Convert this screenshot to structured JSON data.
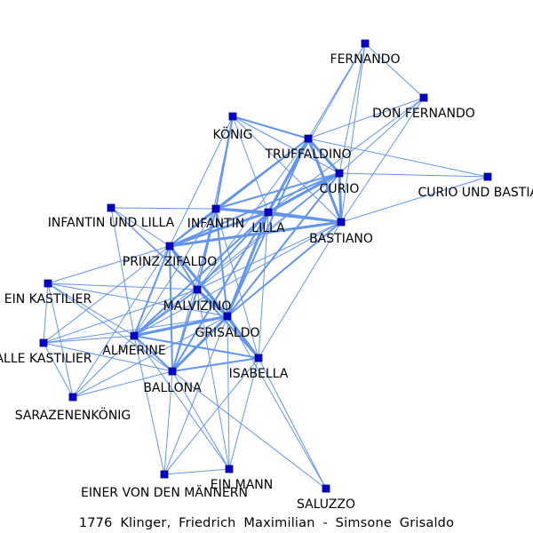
{
  "caption": "1776 Klinger, Friedrich Maximilian - Simsone Grisaldo",
  "colors": {
    "node_fill": "#0000cc",
    "node_stroke": "#000080",
    "edge": "#6495ed",
    "label": "#000000"
  },
  "nodes": [
    {
      "id": "FERNANDO",
      "label": "FERNANDO"
    },
    {
      "id": "DON_FERNANDO",
      "label": "DON FERNANDO"
    },
    {
      "id": "KOENIG",
      "label": "KÖNIG"
    },
    {
      "id": "TRUFFALDINO",
      "label": "TRUFFALDINO"
    },
    {
      "id": "CURIO",
      "label": "CURIO"
    },
    {
      "id": "CURIO_BASTIANO",
      "label": "CURIO UND BASTIANO"
    },
    {
      "id": "INFANTIN_LILLA",
      "label": "INFANTIN UND LILLA"
    },
    {
      "id": "INFANTIN",
      "label": "INFANTIN"
    },
    {
      "id": "LILLA",
      "label": "LILLA"
    },
    {
      "id": "BASTIANO",
      "label": "BASTIANO"
    },
    {
      "id": "PRINZ_ZIFALDO",
      "label": "PRINZ ZIFALDO"
    },
    {
      "id": "EIN_KASTILIER",
      "label": "EIN KASTILIER"
    },
    {
      "id": "MALVIZINO",
      "label": "MALVIZINO"
    },
    {
      "id": "GRISALDO",
      "label": "GRISALDO"
    },
    {
      "id": "ALLE_KASTILIER",
      "label": "ALLE KASTILIER"
    },
    {
      "id": "ALMERINE",
      "label": "ALMERINE"
    },
    {
      "id": "ISABELLA",
      "label": "ISABELLA"
    },
    {
      "id": "BALLONA",
      "label": "BALLONA"
    },
    {
      "id": "SARAZENENKOENIG",
      "label": "SARAZENENKÖNIG"
    },
    {
      "id": "EIN_MANN",
      "label": "EIN MANN"
    },
    {
      "id": "EINER_VON_DEN_MAENNERN",
      "label": "EINER VON DEN MÄNNERN"
    },
    {
      "id": "SALUZZO",
      "label": "SALUZZO"
    }
  ],
  "edges": [
    [
      "FERNANDO",
      "DON_FERNANDO",
      1
    ],
    [
      "FERNANDO",
      "TRUFFALDINO",
      1
    ],
    [
      "FERNANDO",
      "CURIO",
      1
    ],
    [
      "FERNANDO",
      "BASTIANO",
      1
    ],
    [
      "FERNANDO",
      "LILLA",
      1
    ],
    [
      "DON_FERNANDO",
      "TRUFFALDINO",
      1
    ],
    [
      "DON_FERNANDO",
      "CURIO",
      1
    ],
    [
      "DON_FERNANDO",
      "BASTIANO",
      1
    ],
    [
      "DON_FERNANDO",
      "LILLA",
      1
    ],
    [
      "KOENIG",
      "TRUFFALDINO",
      2
    ],
    [
      "KOENIG",
      "CURIO",
      1
    ],
    [
      "KOENIG",
      "INFANTIN",
      2
    ],
    [
      "KOENIG",
      "LILLA",
      1
    ],
    [
      "KOENIG",
      "BASTIANO",
      1
    ],
    [
      "KOENIG",
      "PRINZ_ZIFALDO",
      1
    ],
    [
      "KOENIG",
      "MALVIZINO",
      1
    ],
    [
      "TRUFFALDINO",
      "CURIO",
      3
    ],
    [
      "TRUFFALDINO",
      "BASTIANO",
      3
    ],
    [
      "TRUFFALDINO",
      "LILLA",
      3
    ],
    [
      "TRUFFALDINO",
      "INFANTIN",
      2
    ],
    [
      "TRUFFALDINO",
      "PRINZ_ZIFALDO",
      2
    ],
    [
      "TRUFFALDINO",
      "MALVIZINO",
      1
    ],
    [
      "TRUFFALDINO",
      "GRISALDO",
      2
    ],
    [
      "TRUFFALDINO",
      "CURIO_BASTIANO",
      1
    ],
    [
      "CURIO",
      "BASTIANO",
      3
    ],
    [
      "CURIO",
      "LILLA",
      3
    ],
    [
      "CURIO",
      "INFANTIN",
      2
    ],
    [
      "CURIO",
      "PRINZ_ZIFALDO",
      2
    ],
    [
      "CURIO",
      "GRISALDO",
      2
    ],
    [
      "CURIO",
      "MALVIZINO",
      1
    ],
    [
      "CURIO",
      "CURIO_BASTIANO",
      1
    ],
    [
      "CURIO",
      "ALMERINE",
      1
    ],
    [
      "BASTIANO",
      "LILLA",
      3
    ],
    [
      "BASTIANO",
      "INFANTIN",
      2
    ],
    [
      "BASTIANO",
      "PRINZ_ZIFALDO",
      3
    ],
    [
      "BASTIANO",
      "GRISALDO",
      2
    ],
    [
      "BASTIANO",
      "MALVIZINO",
      1
    ],
    [
      "BASTIANO",
      "CURIO_BASTIANO",
      1
    ],
    [
      "BASTIANO",
      "ISABELLA",
      1
    ],
    [
      "BASTIANO",
      "ALMERINE",
      1
    ],
    [
      "INFANTIN_LILLA",
      "INFANTIN",
      1
    ],
    [
      "INFANTIN_LILLA",
      "PRINZ_ZIFALDO",
      1
    ],
    [
      "INFANTIN_LILLA",
      "MALVIZINO",
      1
    ],
    [
      "INFANTIN_LILLA",
      "GRISALDO",
      1
    ],
    [
      "INFANTIN_LILLA",
      "ALMERINE",
      1
    ],
    [
      "INFANTIN",
      "LILLA",
      3
    ],
    [
      "INFANTIN",
      "PRINZ_ZIFALDO",
      2
    ],
    [
      "INFANTIN",
      "MALVIZINO",
      2
    ],
    [
      "INFANTIN",
      "GRISALDO",
      2
    ],
    [
      "INFANTIN",
      "ALMERINE",
      1
    ],
    [
      "INFANTIN",
      "BALLONA",
      1
    ],
    [
      "INFANTIN",
      "ISABELLA",
      1
    ],
    [
      "LILLA",
      "PRINZ_ZIFALDO",
      3
    ],
    [
      "LILLA",
      "MALVIZINO",
      2
    ],
    [
      "LILLA",
      "GRISALDO",
      3
    ],
    [
      "LILLA",
      "ALMERINE",
      2
    ],
    [
      "LILLA",
      "BALLONA",
      2
    ],
    [
      "LILLA",
      "ISABELLA",
      1
    ],
    [
      "PRINZ_ZIFALDO",
      "MALVIZINO",
      2
    ],
    [
      "PRINZ_ZIFALDO",
      "GRISALDO",
      3
    ],
    [
      "PRINZ_ZIFALDO",
      "ALMERINE",
      2
    ],
    [
      "PRINZ_ZIFALDO",
      "BALLONA",
      2
    ],
    [
      "PRINZ_ZIFALDO",
      "ISABELLA",
      1
    ],
    [
      "PRINZ_ZIFALDO",
      "EIN_KASTILIER",
      1
    ],
    [
      "PRINZ_ZIFALDO",
      "ALLE_KASTILIER",
      1
    ],
    [
      "PRINZ_ZIFALDO",
      "SARAZENENKOENIG",
      1
    ],
    [
      "EIN_KASTILIER",
      "MALVIZINO",
      1
    ],
    [
      "EIN_KASTILIER",
      "GRISALDO",
      1
    ],
    [
      "EIN_KASTILIER",
      "ALMERINE",
      1
    ],
    [
      "EIN_KASTILIER",
      "BALLONA",
      1
    ],
    [
      "EIN_KASTILIER",
      "ALLE_KASTILIER",
      1
    ],
    [
      "EIN_KASTILIER",
      "SARAZENENKOENIG",
      1
    ],
    [
      "MALVIZINO",
      "GRISALDO",
      3
    ],
    [
      "MALVIZINO",
      "ALMERINE",
      2
    ],
    [
      "MALVIZINO",
      "BALLONA",
      2
    ],
    [
      "MALVIZINO",
      "ISABELLA",
      2
    ],
    [
      "MALVIZINO",
      "ALLE_KASTILIER",
      1
    ],
    [
      "MALVIZINO",
      "EIN_MANN",
      1
    ],
    [
      "GRISALDO",
      "ALMERINE",
      3
    ],
    [
      "GRISALDO",
      "BALLONA",
      3
    ],
    [
      "GRISALDO",
      "ISABELLA",
      3
    ],
    [
      "GRISALDO",
      "ALLE_KASTILIER",
      1
    ],
    [
      "GRISALDO",
      "EIN_MANN",
      1
    ],
    [
      "GRISALDO",
      "EINER_VON_DEN_MAENNERN",
      1
    ],
    [
      "GRISALDO",
      "SALUZZO",
      1
    ],
    [
      "GRISALDO",
      "SARAZENENKOENIG",
      1
    ],
    [
      "ALLE_KASTILIER",
      "ALMERINE",
      1
    ],
    [
      "ALLE_KASTILIER",
      "BALLONA",
      1
    ],
    [
      "ALLE_KASTILIER",
      "SARAZENENKOENIG",
      1
    ],
    [
      "ALMERINE",
      "BALLONA",
      2
    ],
    [
      "ALMERINE",
      "ISABELLA",
      2
    ],
    [
      "ALMERINE",
      "SARAZENENKOENIG",
      1
    ],
    [
      "ALMERINE",
      "EIN_MANN",
      1
    ],
    [
      "ALMERINE",
      "EINER_VON_DEN_MAENNERN",
      1
    ],
    [
      "ISABELLA",
      "BALLONA",
      2
    ],
    [
      "ISABELLA",
      "SALUZZO",
      1
    ],
    [
      "ISABELLA",
      "EINER_VON_DEN_MAENNERN",
      1
    ],
    [
      "ISABELLA",
      "EIN_MANN",
      1
    ],
    [
      "BALLONA",
      "SARAZENENKOENIG",
      1
    ],
    [
      "BALLONA",
      "EIN_MANN",
      1
    ],
    [
      "BALLONA",
      "EINER_VON_DEN_MAENNERN",
      1
    ],
    [
      "BALLONA",
      "SALUZZO",
      1
    ],
    [
      "EIN_MANN",
      "EINER_VON_DEN_MAENNERN",
      1
    ]
  ]
}
